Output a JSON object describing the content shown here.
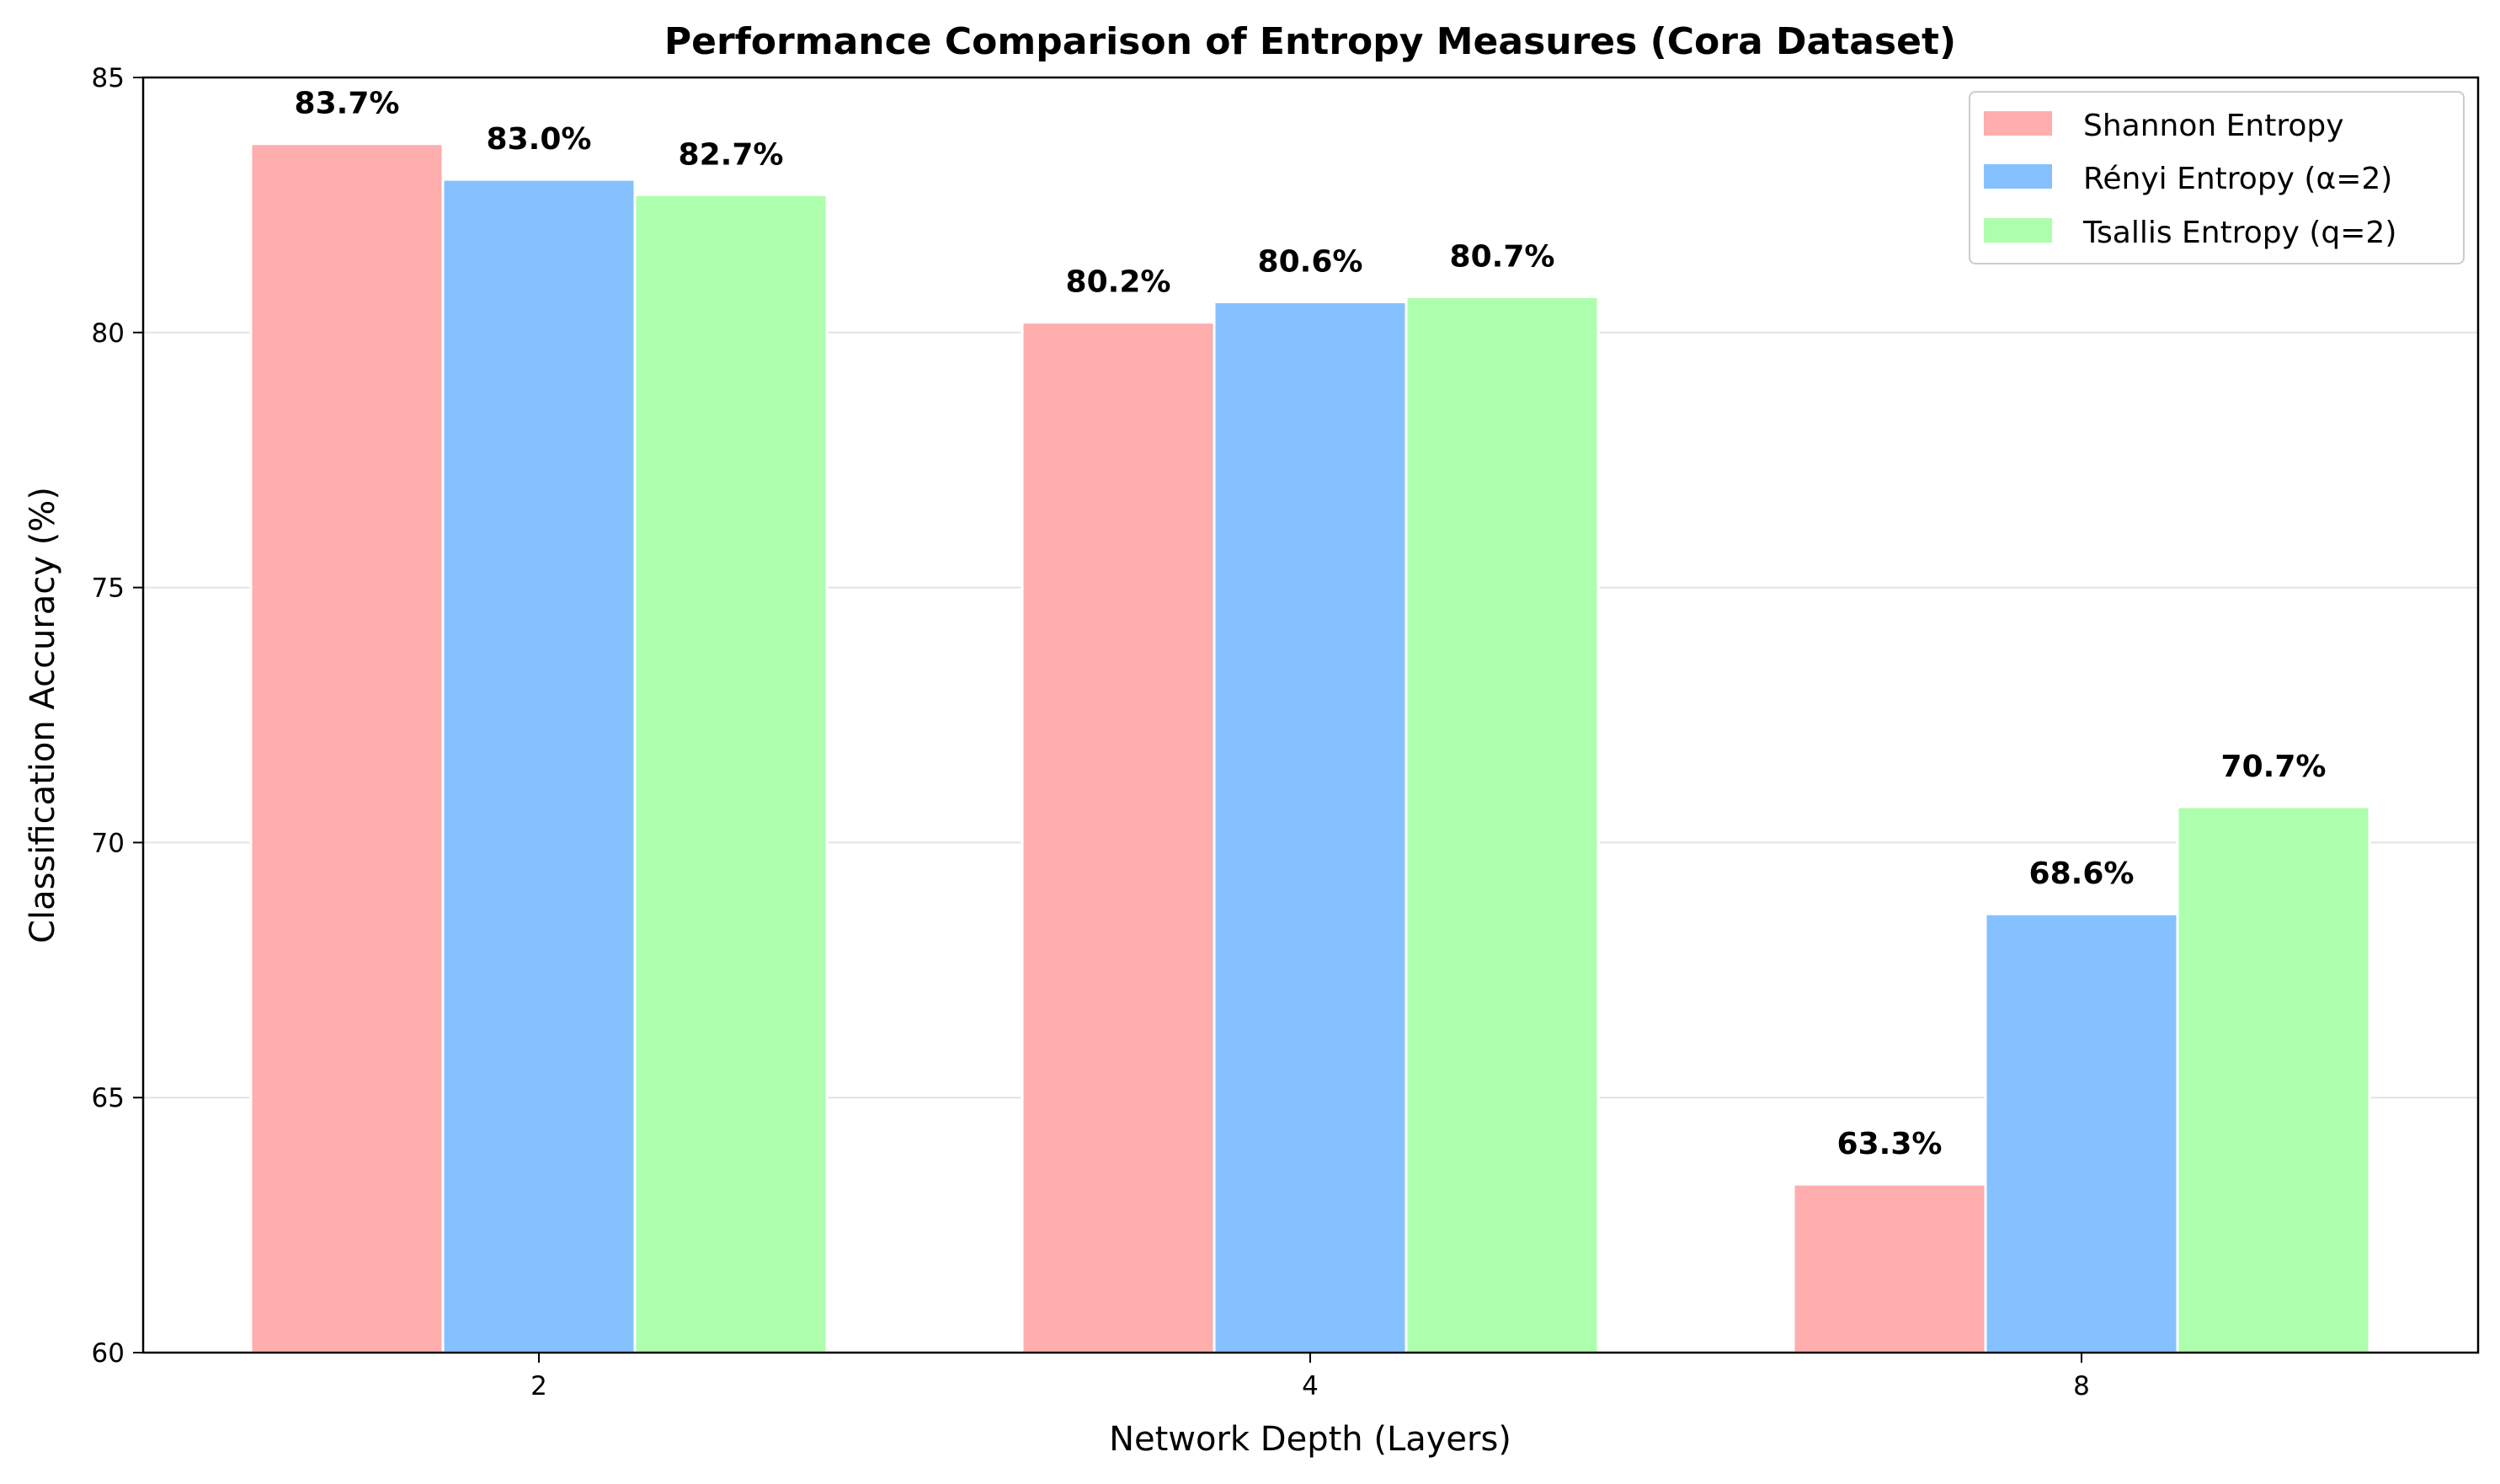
{
  "chart_data": {
    "type": "bar",
    "title": "Performance Comparison of Entropy Measures (Cora Dataset)",
    "xlabel": "Network Depth (Layers)",
    "ylabel": "Classification Accuracy (%)",
    "categories": [
      "2",
      "4",
      "8"
    ],
    "ylim": [
      60,
      85
    ],
    "yticks": [
      60,
      65,
      70,
      75,
      80,
      85
    ],
    "grid": "horizontal",
    "legend_position": "top-right",
    "series": [
      {
        "name": "Shannon Entropy",
        "color": "#ffadad",
        "values": [
          83.7,
          80.2,
          63.3
        ],
        "labels": [
          "83.7%",
          "80.2%",
          "63.3%"
        ]
      },
      {
        "name": "Rényi Entropy (α=2)",
        "color": "#85c1ff",
        "values": [
          83.0,
          80.6,
          68.6
        ],
        "labels": [
          "83.0%",
          "80.6%",
          "68.6%"
        ]
      },
      {
        "name": "Tsallis Entropy (q=2)",
        "color": "#adffad",
        "values": [
          82.7,
          80.7,
          70.7
        ],
        "labels": [
          "82.7%",
          "80.7%",
          "70.7%"
        ]
      }
    ]
  }
}
